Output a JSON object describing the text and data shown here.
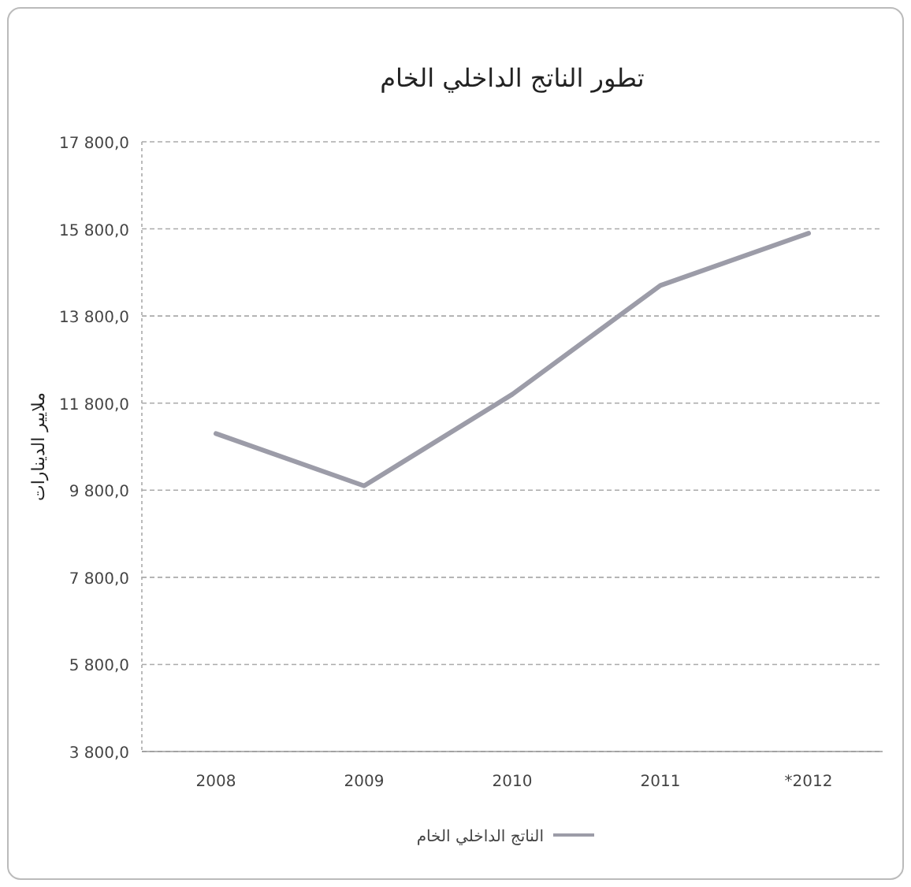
{
  "chart_data": {
    "type": "line",
    "title": "تطور الناتج الداخلي الخام",
    "ylabel": "ملايير الدينارات",
    "categories": [
      "2008",
      "2009",
      "2010",
      "2011",
      "*2012"
    ],
    "series": [
      {
        "name": "الناتج الداخلي الخام",
        "color": "#9c9ca8",
        "values": [
          11100,
          9900,
          12000,
          14500,
          15700
        ]
      }
    ],
    "ylim": [
      3800,
      17800
    ],
    "yticks": [
      {
        "value": 3800,
        "label": "3 800,0"
      },
      {
        "value": 5800,
        "label": "5 800,0"
      },
      {
        "value": 7800,
        "label": "7 800,0"
      },
      {
        "value": 9800,
        "label": "9 800,0"
      },
      {
        "value": 11800,
        "label": "11 800,0"
      },
      {
        "value": 13800,
        "label": "13 800,0"
      },
      {
        "value": 15800,
        "label": "15 800,0"
      },
      {
        "value": 17800,
        "label": "17 800,0"
      }
    ],
    "grid": "y",
    "legend": "bottom"
  }
}
